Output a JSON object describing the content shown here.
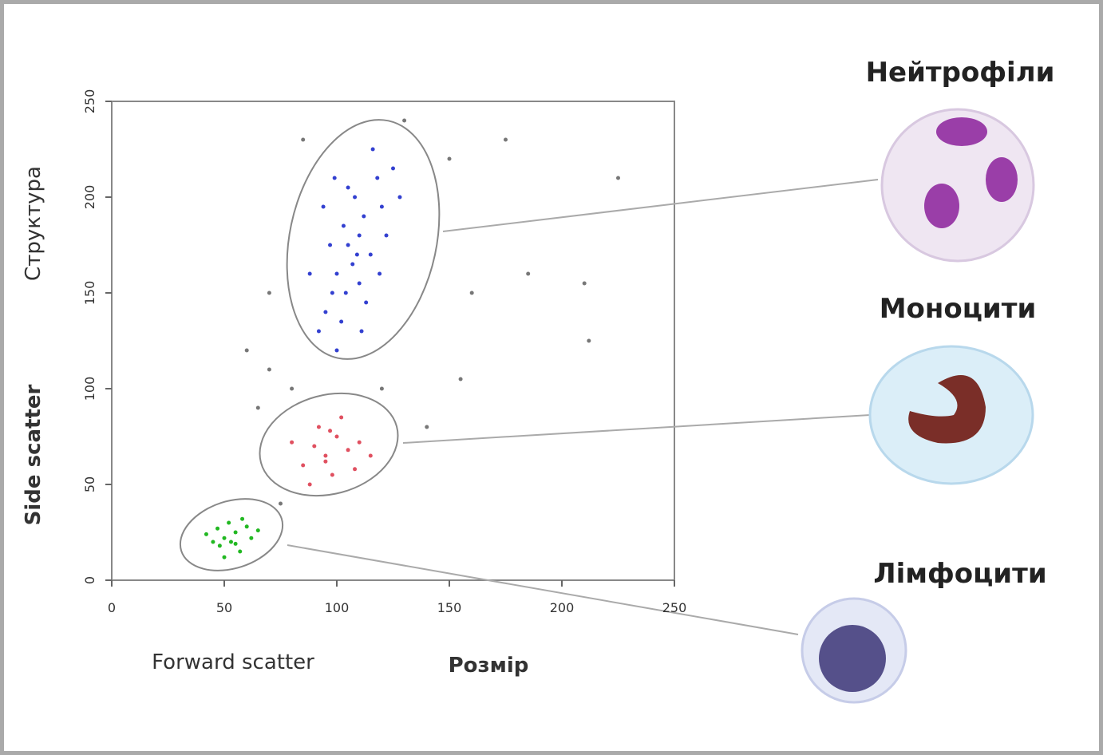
{
  "chart_data": {
    "type": "scatter",
    "xlabel": "Forward scatter",
    "xlabel2": "Розмір",
    "ylabel": "Side scatter",
    "ylabel2": "Структура",
    "xlim": [
      0,
      250
    ],
    "ylim": [
      0,
      250
    ],
    "xticks": [
      0,
      50,
      100,
      150,
      200,
      250
    ],
    "yticks": [
      0,
      50,
      100,
      150,
      200,
      250
    ],
    "cell_labels": [
      "Нейтрофіли",
      "Моноцити",
      "Лімфоцити"
    ],
    "series": [
      {
        "color": "#3340d0",
        "x": [
          100,
          105,
          110,
          98,
          112,
          108,
          95,
          115,
          103,
          120,
          92,
          107,
          118,
          100,
          110,
          125,
          97,
          113,
          105,
          88,
          122,
          102,
          116,
          109,
          94,
          128,
          104,
          111,
          99,
          119
        ],
        "values": [
          160,
          175,
          180,
          150,
          190,
          200,
          140,
          170,
          185,
          195,
          130,
          165,
          210,
          120,
          155,
          215,
          175,
          145,
          205,
          160,
          180,
          135,
          225,
          170,
          195,
          200,
          150,
          130,
          210,
          160
        ]
      },
      {
        "color": "#e05060",
        "x": [
          90,
          95,
          100,
          85,
          105,
          92,
          98,
          110,
          88,
          102,
          95,
          115,
          80,
          108,
          97
        ],
        "values": [
          70,
          65,
          75,
          60,
          68,
          80,
          55,
          72,
          50,
          85,
          62,
          65,
          72,
          58,
          78
        ]
      },
      {
        "color": "#22b822",
        "x": [
          50,
          55,
          48,
          60,
          52,
          45,
          57,
          62,
          53,
          47,
          58,
          42,
          65,
          55,
          50
        ],
        "values": [
          22,
          25,
          18,
          28,
          30,
          20,
          15,
          22,
          20,
          27,
          32,
          24,
          26,
          19,
          12
        ]
      },
      {
        "color": "#777777",
        "x": [
          70,
          80,
          150,
          160,
          185,
          210,
          70,
          65,
          130,
          175,
          155,
          212,
          120,
          75,
          140,
          60,
          85,
          225
        ],
        "values": [
          110,
          100,
          220,
          150,
          160,
          155,
          150,
          90,
          240,
          230,
          105,
          125,
          100,
          40,
          80,
          120,
          230,
          210
        ]
      }
    ]
  }
}
